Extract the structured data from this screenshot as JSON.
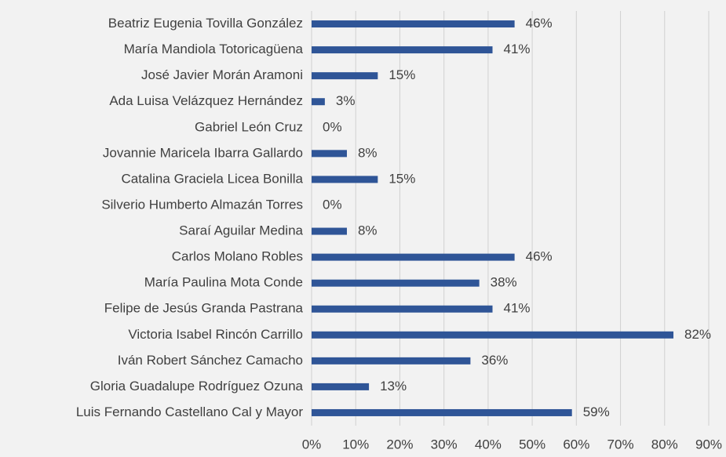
{
  "chart_data": {
    "type": "bar",
    "orientation": "horizontal",
    "categories": [
      "Beatriz Eugenia Tovilla González",
      "María Mandiola Totoricagüena",
      "José Javier Morán Aramoni",
      "Ada Luisa Velázquez Hernández",
      "Gabriel León Cruz",
      "Jovannie Maricela Ibarra Gallardo",
      "Catalina Graciela Licea Bonilla",
      "Silverio Humberto Almazán Torres",
      "Saraí Aguilar Medina",
      "Carlos Molano Robles",
      "María Paulina Mota Conde",
      "Felipe de Jesús Granda Pastrana",
      "Victoria Isabel Rincón Carrillo",
      "Iván Robert Sánchez Camacho",
      "Gloria Guadalupe Rodríguez Ozuna",
      "Luis Fernando Castellano Cal y Mayor"
    ],
    "values": [
      46,
      41,
      15,
      3,
      0,
      8,
      15,
      0,
      8,
      46,
      38,
      41,
      82,
      36,
      13,
      59
    ],
    "value_labels": [
      "46%",
      "41%",
      "15%",
      "3%",
      "0%",
      "8%",
      "15%",
      "0%",
      "8%",
      "46%",
      "38%",
      "41%",
      "82%",
      "36%",
      "13%",
      "59%"
    ],
    "color": "#2f5597",
    "xlim": [
      0,
      90
    ],
    "xticks": [
      {
        "value": 0,
        "label": "0%"
      },
      {
        "value": 10,
        "label": "10%"
      },
      {
        "value": 20,
        "label": "20%"
      },
      {
        "value": 30,
        "label": "30%"
      },
      {
        "value": 40,
        "label": "40%"
      },
      {
        "value": 50,
        "label": "50%"
      },
      {
        "value": 60,
        "label": "60%"
      },
      {
        "value": 70,
        "label": "70%"
      },
      {
        "value": 80,
        "label": "80%"
      },
      {
        "value": 90,
        "label": "90%"
      }
    ],
    "grid": true
  }
}
